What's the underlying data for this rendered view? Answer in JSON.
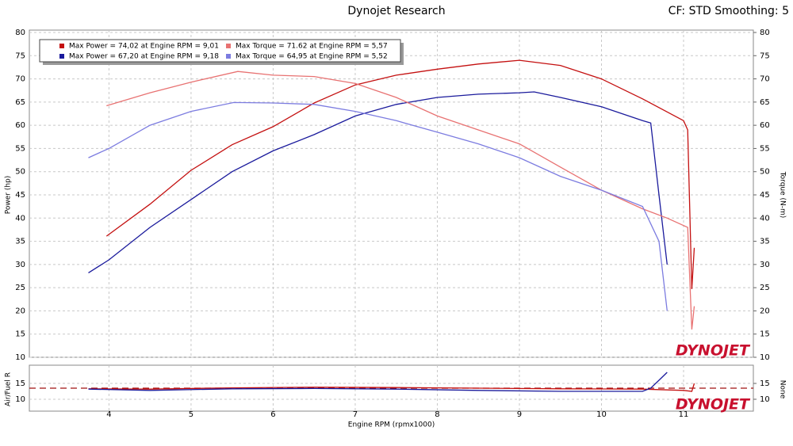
{
  "chart_data": [
    {
      "type": "line",
      "title": "Dynojet Research",
      "subtitle": "CF: STD Smoothing: 5",
      "y_label": "Power (hp)",
      "y2_label": "Torque (N-m)",
      "logo": "DYNOJET",
      "xlim": [
        3.03,
        11.85
      ],
      "xticks": [
        4,
        5,
        6,
        7,
        8,
        9,
        10,
        11
      ],
      "ylim": [
        10,
        80
      ],
      "yticks": [
        10,
        15,
        20,
        25,
        30,
        35,
        40,
        45,
        50,
        55,
        60,
        65,
        70,
        75,
        80
      ],
      "y2lim": [
        10,
        80
      ],
      "y2ticks": [
        10,
        15,
        20,
        25,
        30,
        35,
        40,
        45,
        50,
        55,
        60,
        65,
        70,
        75,
        80
      ],
      "grid": true,
      "series": [
        {
          "name": "Max Power = 74,02 at Engine RPM = 9,01",
          "color": "#c41010",
          "x": [
            3.97,
            4.5,
            5,
            5.5,
            6,
            6.5,
            7,
            7.5,
            8,
            8.5,
            9,
            9.5,
            10,
            10.5,
            11,
            11.05,
            11.1,
            11.13
          ],
          "values": [
            36.1,
            43,
            50.3,
            55.8,
            59.7,
            64.8,
            68.7,
            70.8,
            72.1,
            73.2,
            74.0,
            72.9,
            70,
            65.7,
            61,
            59,
            24.7,
            33.6
          ]
        },
        {
          "name": "Max Power = 67,20 at Engine RPM = 9,18",
          "color": "#1a1a9c",
          "x": [
            3.75,
            4,
            4.5,
            5,
            5.5,
            6,
            6.5,
            7,
            7.5,
            8,
            8.5,
            9,
            9.18,
            9.5,
            10,
            10.5,
            10.6,
            10.7,
            10.8
          ],
          "values": [
            28.2,
            31,
            38,
            44,
            50,
            54.5,
            58,
            62,
            64.5,
            66,
            66.7,
            67.0,
            67.2,
            66,
            64,
            61,
            60.5,
            45,
            30
          ]
        },
        {
          "name": "Max Torque = 71.62 at Engine RPM = 5,57",
          "color": "#e87272",
          "axis": "y2",
          "x": [
            3.97,
            4.5,
            5,
            5.57,
            6,
            6.5,
            7,
            7.5,
            8,
            8.5,
            9,
            9.5,
            10,
            10.5,
            10.8,
            11.05,
            11.1,
            11.13
          ],
          "values": [
            64.2,
            67,
            69.3,
            71.6,
            70.8,
            70.5,
            69,
            66,
            62,
            59,
            56,
            51,
            46,
            42,
            40,
            38,
            16,
            21
          ]
        },
        {
          "name": "Max Torque = 64,95 at Engine RPM = 5,52",
          "color": "#7c7ce0",
          "axis": "y2",
          "x": [
            3.75,
            4,
            4.5,
            5,
            5.52,
            6,
            6.5,
            7,
            7.5,
            8,
            8.5,
            9,
            9.5,
            10,
            10.5,
            10.7,
            10.8
          ],
          "values": [
            53,
            55,
            60,
            63,
            64.9,
            64.8,
            64.5,
            63,
            61,
            58.5,
            56,
            53,
            49,
            46,
            42.5,
            35,
            20
          ]
        }
      ]
    },
    {
      "type": "line",
      "y_label": "Air/Fuel R",
      "y2_label": "None",
      "x_label": "Engine RPM (rpmx1000)",
      "logo": "DYNOJET",
      "xlim": [
        3.03,
        11.85
      ],
      "xticks": [
        4,
        5,
        6,
        7,
        8,
        9,
        10,
        11
      ],
      "ylim": [
        6.25,
        20
      ],
      "yticks": [
        10,
        15
      ],
      "y2lim": [
        6.25,
        20
      ],
      "y2ticks": [
        10,
        15
      ],
      "grid": true,
      "reference_line": 13.5,
      "reference_color": "#a01010",
      "series": [
        {
          "color": "#c41010",
          "x": [
            3.75,
            4.5,
            5.5,
            6.5,
            7.5,
            8.5,
            9.5,
            10.5,
            11,
            11.1,
            11.13
          ],
          "values": [
            13.3,
            13.2,
            13.6,
            13.8,
            13.7,
            13.5,
            13.3,
            13.2,
            12.8,
            12.5,
            15
          ]
        },
        {
          "color": "#1a1a9c",
          "x": [
            3.75,
            4.5,
            5.5,
            6.5,
            7.5,
            8.5,
            9.5,
            10.5,
            10.6,
            10.7,
            10.8
          ],
          "values": [
            13.2,
            12.8,
            13.3,
            13.4,
            13.2,
            12.8,
            12.5,
            12.5,
            13.5,
            16,
            18.5
          ]
        }
      ]
    }
  ]
}
